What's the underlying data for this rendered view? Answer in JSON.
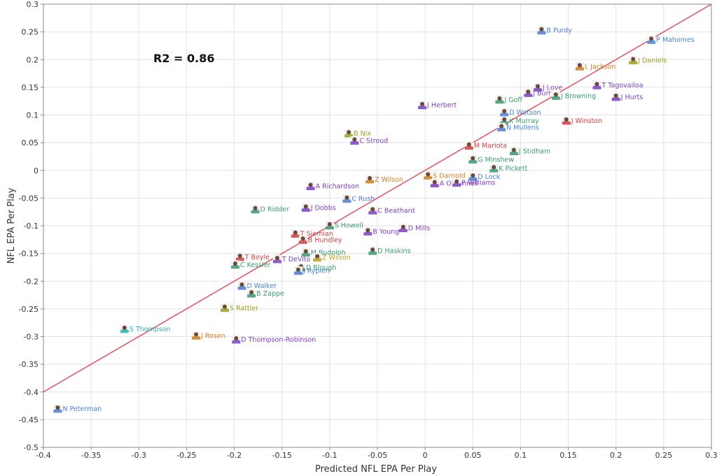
{
  "chart_data": {
    "type": "scatter",
    "title": "",
    "xlabel": "Predicted NFL EPA Per Play",
    "ylabel": "NFL EPA Per Play",
    "xlim": [
      -0.4,
      0.3
    ],
    "ylim": [
      -0.5,
      0.3
    ],
    "x_ticks": [
      "-0.4",
      "-0.35",
      "-0.3",
      "-0.25",
      "-0.2",
      "-0.15",
      "-0.1",
      "-0.05",
      "0",
      "0.05",
      "0.1",
      "0.15",
      "0.2",
      "0.25",
      "0.3"
    ],
    "y_ticks": [
      "0.3",
      "0.25",
      "0.2",
      "0.15",
      "0.1",
      "0.05",
      "0",
      "-0.05",
      "-0.1",
      "-0.15",
      "-0.2",
      "-0.25",
      "-0.3",
      "-0.35",
      "-0.4",
      "-0.45",
      "-0.5"
    ],
    "grid": true,
    "annotation": "R2 = 0.86",
    "fit_line": {
      "x": [
        -0.4,
        0.3
      ],
      "y": [
        -0.4,
        0.3
      ],
      "color": "#e05060"
    },
    "points": [
      {
        "label": "B Purdy",
        "x": 0.122,
        "y": 0.253,
        "color": "#4a7fd4"
      },
      {
        "label": "P Mahomes",
        "x": 0.237,
        "y": 0.236,
        "color": "#4a7fd4"
      },
      {
        "label": "J Daniels",
        "x": 0.218,
        "y": 0.199,
        "color": "#9aa020"
      },
      {
        "label": "L Jackson",
        "x": 0.162,
        "y": 0.188,
        "color": "#d08020"
      },
      {
        "label": "T Tagovailoa",
        "x": 0.18,
        "y": 0.154,
        "color": "#7a3fc4"
      },
      {
        "label": "J Love",
        "x": 0.118,
        "y": 0.15,
        "color": "#7a3fc4"
      },
      {
        "label": "J Burr",
        "x": 0.108,
        "y": 0.14,
        "color": "#7a3fc4"
      },
      {
        "label": "J Hurts",
        "x": 0.2,
        "y": 0.133,
        "color": "#7a3fc4"
      },
      {
        "label": "J Browning",
        "x": 0.137,
        "y": 0.135,
        "color": "#3a9a70"
      },
      {
        "label": "J Goff",
        "x": 0.078,
        "y": 0.128,
        "color": "#3a9a70"
      },
      {
        "label": "J Herbert",
        "x": -0.003,
        "y": 0.118,
        "color": "#7a3fc4"
      },
      {
        "label": "D Watson",
        "x": 0.083,
        "y": 0.105,
        "color": "#4a7fd4"
      },
      {
        "label": "K Murray",
        "x": 0.083,
        "y": 0.09,
        "color": "#3a9a70"
      },
      {
        "label": "J Winston",
        "x": 0.148,
        "y": 0.09,
        "color": "#d04040"
      },
      {
        "label": "N Mullens",
        "x": 0.08,
        "y": 0.078,
        "color": "#4a7fd4"
      },
      {
        "label": "B Nix",
        "x": -0.08,
        "y": 0.067,
        "color": "#9aa020"
      },
      {
        "label": "C Stroud",
        "x": -0.074,
        "y": 0.054,
        "color": "#7a3fc4"
      },
      {
        "label": "M Mariota",
        "x": 0.046,
        "y": 0.045,
        "color": "#d04040"
      },
      {
        "label": "J Stidham",
        "x": 0.093,
        "y": 0.035,
        "color": "#3a9a70"
      },
      {
        "label": "G Minshew",
        "x": 0.05,
        "y": 0.02,
        "color": "#3a9a70"
      },
      {
        "label": "K Pickett",
        "x": 0.072,
        "y": 0.004,
        "color": "#3a9a70"
      },
      {
        "label": "S Darnold",
        "x": 0.003,
        "y": -0.009,
        "color": "#d08020"
      },
      {
        "label": "D Lock",
        "x": 0.05,
        "y": -0.011,
        "color": "#4a7fd4"
      },
      {
        "label": "Z Wilson",
        "x": -0.058,
        "y": -0.016,
        "color": "#d08020"
      },
      {
        "label": "A O'Connell",
        "x": 0.01,
        "y": -0.023,
        "color": "#7a3fc4"
      },
      {
        "label": "P Williams",
        "x": 0.033,
        "y": -0.022,
        "color": "#7a3fc4"
      },
      {
        "label": "A Richardson",
        "x": -0.12,
        "y": -0.028,
        "color": "#7a3fc4"
      },
      {
        "label": "C Rush",
        "x": -0.082,
        "y": -0.051,
        "color": "#4a7fd4"
      },
      {
        "label": "D Ridder",
        "x": -0.178,
        "y": -0.07,
        "color": "#3a9a70"
      },
      {
        "label": "J Dobbs",
        "x": -0.125,
        "y": -0.067,
        "color": "#7a3fc4"
      },
      {
        "label": "C Beathard",
        "x": -0.055,
        "y": -0.072,
        "color": "#7a3fc4"
      },
      {
        "label": "S Howell",
        "x": -0.1,
        "y": -0.099,
        "color": "#3a9a70"
      },
      {
        "label": "D Mills",
        "x": -0.023,
        "y": -0.104,
        "color": "#7a3fc4"
      },
      {
        "label": "B Young",
        "x": -0.06,
        "y": -0.11,
        "color": "#7a3fc4"
      },
      {
        "label": "T Siemian",
        "x": -0.136,
        "y": -0.114,
        "color": "#d04040"
      },
      {
        "label": "B Hundley",
        "x": -0.128,
        "y": -0.125,
        "color": "#d04040"
      },
      {
        "label": "D Haskins",
        "x": -0.055,
        "y": -0.145,
        "color": "#3a9a70"
      },
      {
        "label": "T Boyle",
        "x": -0.194,
        "y": -0.156,
        "color": "#d04040"
      },
      {
        "label": "M Rudolph",
        "x": -0.125,
        "y": -0.148,
        "color": "#3a9a70"
      },
      {
        "label": "T DeVito",
        "x": -0.155,
        "y": -0.16,
        "color": "#7a3fc4"
      },
      {
        "label": "Z Wilson",
        "x": -0.113,
        "y": -0.157,
        "color": "#c0a020"
      },
      {
        "label": "C Kessler",
        "x": -0.199,
        "y": -0.17,
        "color": "#3a9a70"
      },
      {
        "label": "D Blough",
        "x": -0.13,
        "y": -0.175,
        "color": "#3a9a70"
      },
      {
        "label": "J Rypien",
        "x": -0.133,
        "y": -0.181,
        "color": "#4a7fd4"
      },
      {
        "label": "D Walker",
        "x": -0.192,
        "y": -0.208,
        "color": "#4a7fd4"
      },
      {
        "label": "B Zappe",
        "x": -0.182,
        "y": -0.222,
        "color": "#3a9a70"
      },
      {
        "label": "S Rattler",
        "x": -0.21,
        "y": -0.248,
        "color": "#9aa020"
      },
      {
        "label": "S Thompson",
        "x": -0.315,
        "y": -0.286,
        "color": "#2ab5b0"
      },
      {
        "label": "J Rosen",
        "x": -0.24,
        "y": -0.298,
        "color": "#d08020"
      },
      {
        "label": "D Thompson-Robinson",
        "x": -0.198,
        "y": -0.305,
        "color": "#7a3fc4"
      },
      {
        "label": "N Peterman",
        "x": -0.385,
        "y": -0.43,
        "color": "#4a7fd4"
      }
    ]
  }
}
